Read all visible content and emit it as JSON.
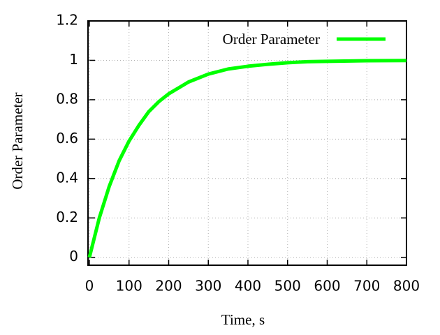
{
  "chart_data": {
    "type": "line",
    "x_label": "Time, s",
    "y_label": "Order Parameter",
    "x": [
      0,
      25,
      50,
      75,
      100,
      125,
      150,
      175,
      200,
      250,
      300,
      350,
      400,
      450,
      500,
      550,
      600,
      700,
      800
    ],
    "series": [
      {
        "name": "Order Parameter",
        "color": "#00ff00",
        "values": [
          0,
          0.2,
          0.36,
          0.49,
          0.59,
          0.67,
          0.74,
          0.79,
          0.83,
          0.89,
          0.93,
          0.956,
          0.97,
          0.98,
          0.988,
          0.993,
          0.995,
          0.998,
          0.999
        ]
      }
    ],
    "xlim": [
      0,
      800
    ],
    "xticks": [
      0,
      100,
      200,
      300,
      400,
      500,
      600,
      700,
      800
    ],
    "ylim": [
      -0.04,
      1.2
    ],
    "yticks": [
      0,
      0.2,
      0.4,
      0.6,
      0.8,
      1,
      1.2
    ],
    "grid": true,
    "legend": "top-right"
  }
}
